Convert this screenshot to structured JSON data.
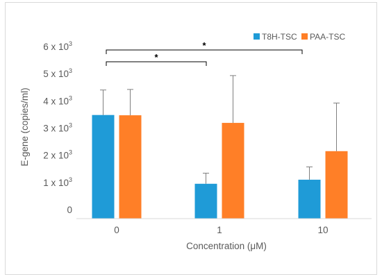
{
  "chart_data": {
    "type": "bar",
    "title": "",
    "xlabel": "Concentration (μM)",
    "ylabel": "E-gene (copies/ml)",
    "categories": [
      "0",
      "1",
      "10"
    ],
    "ylim": [
      0,
      6000
    ],
    "y_ticks": [
      {
        "value": 0,
        "label_base": "0",
        "label_exp": ""
      },
      {
        "value": 1000,
        "label_base": "1 x 10",
        "label_exp": "3"
      },
      {
        "value": 2000,
        "label_base": "2 x 10",
        "label_exp": "3"
      },
      {
        "value": 3000,
        "label_base": "3 x 10",
        "label_exp": "3"
      },
      {
        "value": 4000,
        "label_base": "4 x 10",
        "label_exp": "3"
      },
      {
        "value": 5000,
        "label_base": "5 x 10",
        "label_exp": "3"
      },
      {
        "value": 6000,
        "label_base": "6 x 10",
        "label_exp": "3"
      }
    ],
    "grid": false,
    "legend_position": "top-right",
    "series": [
      {
        "name": "T8H-TSC",
        "color": "#1f9bd7",
        "values": [
          3480,
          950,
          1100
        ],
        "error_upper": [
          920,
          390,
          470
        ]
      },
      {
        "name": "PAA-TSC",
        "color": "#ff7f27",
        "values": [
          3470,
          3190,
          2150
        ],
        "error_upper": [
          950,
          1740,
          1770
        ]
      }
    ],
    "annotations": [
      {
        "label": "*",
        "from_category": "0",
        "to_category": "1"
      },
      {
        "label": "*",
        "from_category": "0",
        "to_category": "10"
      }
    ]
  }
}
